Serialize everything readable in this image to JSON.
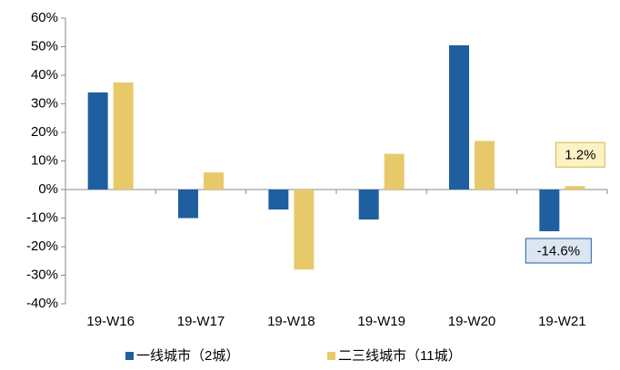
{
  "chart_data": {
    "type": "bar",
    "categories": [
      "19-W16",
      "19-W17",
      "19-W18",
      "19-W19",
      "19-W20",
      "19-W21"
    ],
    "series": [
      {
        "name": "一线城市（2城）",
        "color": "#1f5fa0",
        "values": [
          34,
          -10,
          -7,
          -10.5,
          50.5,
          -14.6
        ],
        "value_labels": [
          null,
          null,
          null,
          null,
          null,
          "-14.6%"
        ]
      },
      {
        "name": "二三线城市（11城）",
        "color": "#e8c96a",
        "values": [
          37.5,
          6,
          -28,
          12.5,
          17,
          1.2
        ],
        "value_labels": [
          null,
          null,
          null,
          null,
          null,
          "1.2%"
        ]
      }
    ],
    "ylim": [
      -40,
      60
    ],
    "yticks": [
      {
        "value": -40,
        "label": "-40%"
      },
      {
        "value": -30,
        "label": "-30%"
      },
      {
        "value": -20,
        "label": "-20%"
      },
      {
        "value": -10,
        "label": "-10%"
      },
      {
        "value": 0,
        "label": "0%"
      },
      {
        "value": 10,
        "label": "10%"
      },
      {
        "value": 20,
        "label": "20%"
      },
      {
        "value": 30,
        "label": "30%"
      },
      {
        "value": 40,
        "label": "40%"
      },
      {
        "value": 50,
        "label": "50%"
      },
      {
        "value": 60,
        "label": "60%"
      }
    ],
    "grid": false,
    "legend": "bottom"
  }
}
